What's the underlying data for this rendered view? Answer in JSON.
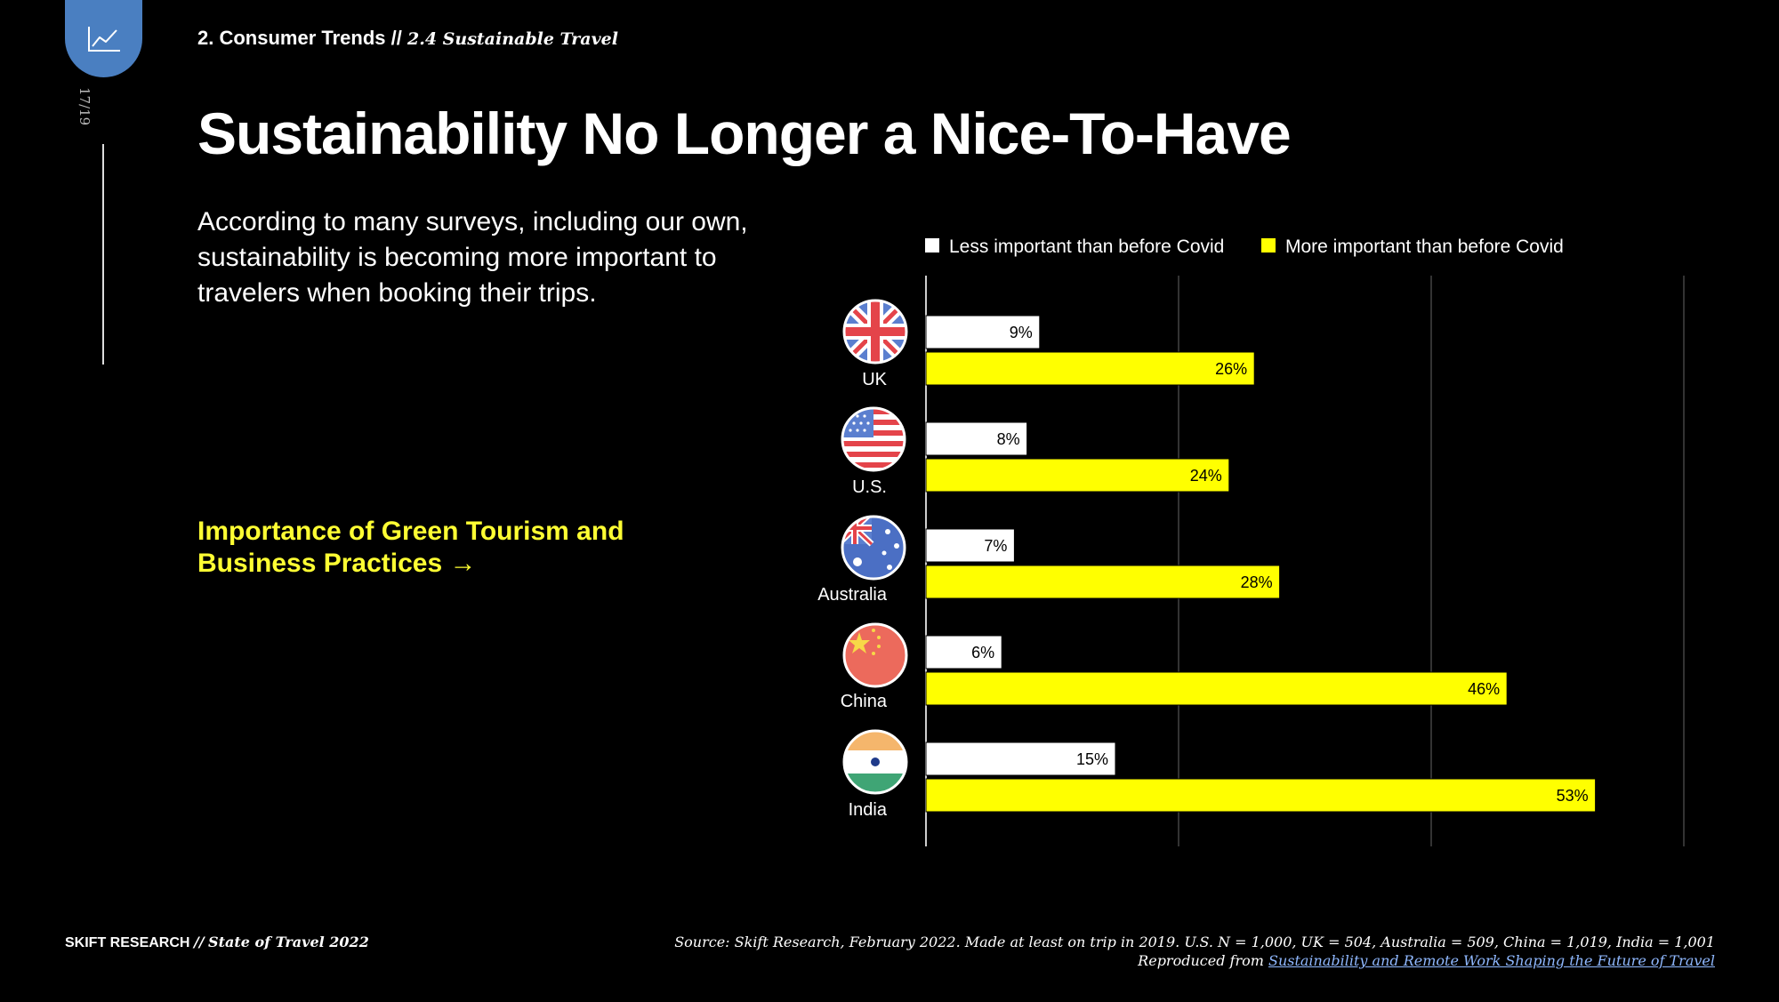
{
  "header": {
    "section": "2. Consumer Trends",
    "separator": "//",
    "subsection": "2.4 Sustainable Travel",
    "page_number": "17/19",
    "tab_icon": "line-chart-icon"
  },
  "title": "Sustainability No Longer a Nice-To-Have",
  "intro": "According to many surveys, including our own, sustainability is becoming more important to travelers when booking their trips.",
  "link": {
    "label": "Importance of Green Tourism and Business Practices →",
    "color": "#ffff33"
  },
  "chart_data": {
    "type": "bar",
    "orientation": "horizontal",
    "categories": [
      "UK",
      "U.S.",
      "Australia",
      "China",
      "India"
    ],
    "category_icons": [
      "uk-flag-icon",
      "us-flag-icon",
      "australia-flag-icon",
      "china-flag-icon",
      "india-flag-icon"
    ],
    "series": [
      {
        "name": "Less important than before Covid",
        "values": [
          9,
          8,
          7,
          6,
          15
        ],
        "labels": [
          "9%",
          "8%",
          "7%",
          "6%",
          "15%"
        ],
        "color": "#ffffff"
      },
      {
        "name": "More important than before Covid",
        "values": [
          26,
          24,
          28,
          46,
          53
        ],
        "labels": [
          "26%",
          "24%",
          "28%",
          "46%",
          "53%"
        ],
        "color": "#ffff00"
      }
    ],
    "xlim": [
      0,
      60
    ],
    "grid": true,
    "legend": "top"
  },
  "footer": {
    "brand": "SKIFT RESEARCH",
    "separator": "//",
    "publication": "State of Travel 2022",
    "source": "Source: Skift Research, February 2022. Made at least on trip in 2019. U.S. N = 1,000, UK = 504, Australia = 509, China = 1,019, India = 1,001",
    "reproduced_prefix": "Reproduced from",
    "reproduced_link": "Sustainability and Remote Work Shaping the Future of Travel"
  }
}
